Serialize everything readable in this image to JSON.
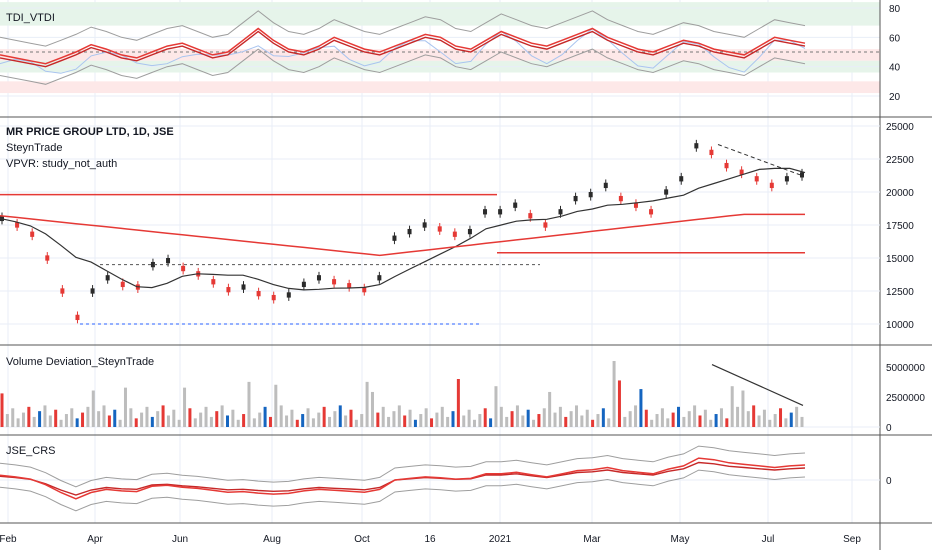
{
  "colors": {
    "red": "#e53935",
    "dark": "#2b2b2b",
    "grey": "#9e9e9e",
    "blue": "#2962ff",
    "green_band": "#e6f4ea",
    "red_band": "#fde8e8",
    "grid": "#e8eef7"
  },
  "panels": {
    "tdi": {
      "title": "TDI_VTDI",
      "ticks": [
        80,
        60,
        40,
        20
      ]
    },
    "price": {
      "title": "MR PRICE GROUP LTD, 1D, JSE",
      "line2": "SteynTrade",
      "line3": "VPVR: study_not_auth",
      "ticks": [
        25000,
        22500,
        20000,
        17500,
        15000,
        12500,
        10000
      ]
    },
    "volume": {
      "title": "Volume Deviation_SteynTrade",
      "ticks": [
        "5000000",
        "2500000",
        "0"
      ]
    },
    "crs": {
      "title": "JSE_CRS",
      "ticks": [
        "0"
      ]
    }
  },
  "x_axis": {
    "labels": [
      "Feb",
      "Apr",
      "Jun",
      "Aug",
      "Oct",
      "16",
      "2021",
      "Mar",
      "May",
      "Jul",
      "Sep"
    ]
  },
  "chart_data": [
    {
      "type": "line",
      "title": "TDI_VTDI",
      "y_axis_ticks": [
        20,
        40,
        60,
        80
      ],
      "series": [
        {
          "values": [
            48,
            46,
            44,
            42,
            46,
            50,
            55,
            52,
            48,
            46,
            50,
            54,
            56,
            52,
            48,
            50,
            58,
            66,
            58,
            52,
            50,
            54,
            60,
            56,
            52,
            50,
            54,
            58,
            62,
            60,
            54,
            52,
            58,
            64,
            60,
            56,
            54,
            58,
            62,
            66,
            60,
            56,
            52,
            50,
            54,
            58,
            56,
            52,
            50,
            48,
            54,
            60,
            58,
            56
          ]
        }
      ]
    },
    {
      "type": "line",
      "title": "MR PRICE GROUP LTD, 1D, JSE",
      "y_axis_ticks": [
        10000,
        12500,
        15000,
        17500,
        20000,
        22500,
        25000
      ],
      "series": [
        {
          "values": [
            18000,
            17500,
            16800,
            15000,
            12500,
            10500,
            12500,
            13500,
            13000,
            12800,
            14500,
            14800,
            14200,
            13800,
            13200,
            12600,
            12800,
            12300,
            12000,
            12200,
            13000,
            13500,
            13200,
            12900,
            12600,
            13500,
            16500,
            17000,
            17500,
            17200,
            16800,
            17000,
            18500,
            18500,
            19000,
            18200,
            17500,
            18500,
            19500,
            19800,
            20500,
            19500,
            19000,
            18500,
            20000,
            21000,
            23500,
            23000,
            22000,
            21500,
            21000,
            20500,
            21000,
            21300
          ]
        }
      ]
    },
    {
      "type": "bar",
      "title": "Volume Deviation_SteynTrade",
      "y_axis_ticks": [
        0,
        2500000,
        5000000
      ]
    },
    {
      "type": "line",
      "title": "JSE_CRS",
      "y_axis_ticks": [
        0
      ]
    }
  ]
}
